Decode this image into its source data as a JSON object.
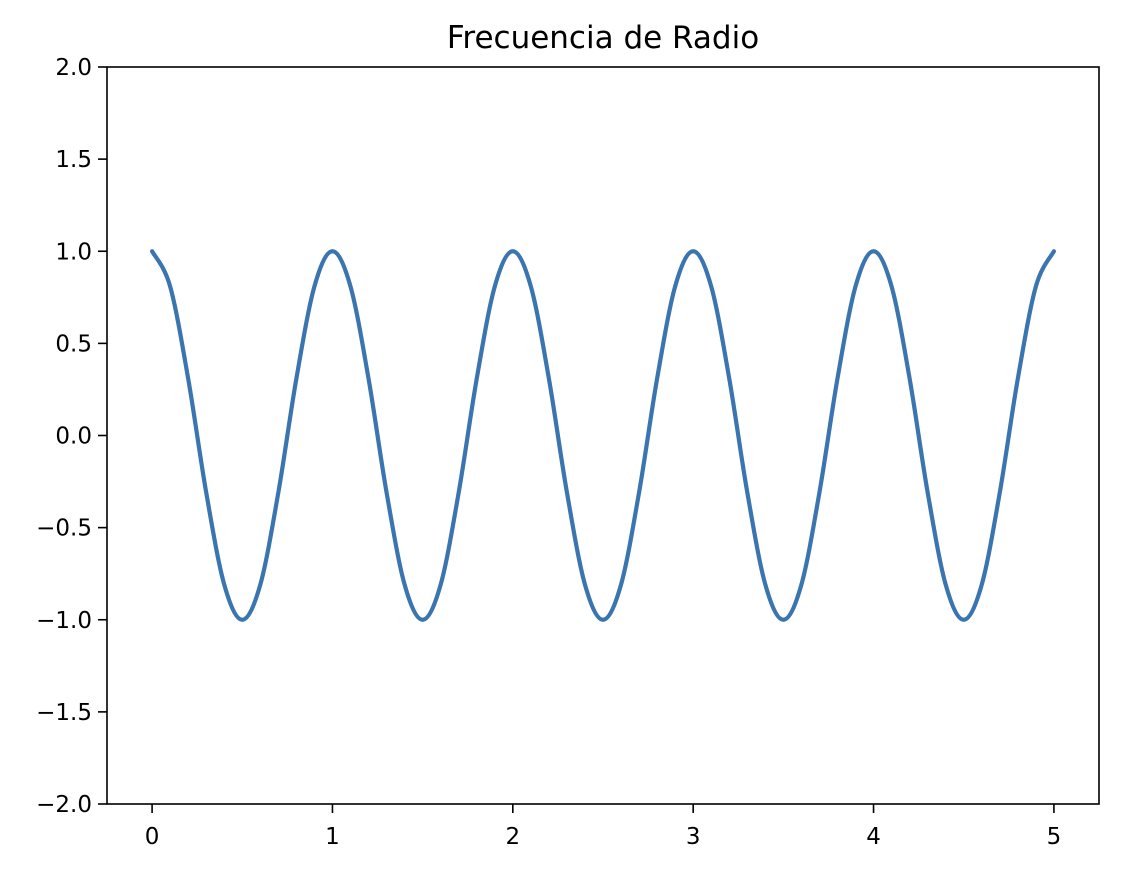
{
  "chart_data": {
    "type": "line",
    "title": "Frecuencia de Radio",
    "xlabel": "",
    "ylabel": "",
    "xlim": [
      -0.25,
      5.25
    ],
    "ylim": [
      -2.0,
      2.0
    ],
    "x_ticks": [
      0,
      1,
      2,
      3,
      4,
      5
    ],
    "x_tick_labels": [
      "0",
      "1",
      "2",
      "3",
      "4",
      "5"
    ],
    "y_ticks": [
      2.0,
      1.5,
      1.0,
      0.5,
      0.0,
      -0.5,
      -1.0,
      -1.5,
      -2.0
    ],
    "y_tick_labels": [
      "2.0",
      "1.5",
      "1.0",
      "0.5",
      "0.0",
      "−0.5",
      "−1.0",
      "−1.5",
      "−2.0"
    ],
    "grid": false,
    "series": [
      {
        "color": "#3a75b0",
        "x": [
          0,
          0.1,
          0.2,
          0.3,
          0.4,
          0.5,
          0.6,
          0.7,
          0.8,
          0.9,
          1.0,
          1.1,
          1.2,
          1.3,
          1.4,
          1.5,
          1.6,
          1.7,
          1.8,
          1.9,
          2.0,
          2.1,
          2.2,
          2.3,
          2.4,
          2.5,
          2.6,
          2.7,
          2.8,
          2.9,
          3.0,
          3.1,
          3.2,
          3.3,
          3.4,
          3.5,
          3.6,
          3.7,
          3.8,
          3.9,
          4.0,
          4.1,
          4.2,
          4.3,
          4.4,
          4.5,
          4.6,
          4.7,
          4.8,
          4.9,
          5.0
        ],
        "y": [
          1.0,
          0.809,
          0.309,
          -0.309,
          -0.809,
          -1.0,
          -0.809,
          -0.309,
          0.309,
          0.809,
          1.0,
          0.809,
          0.309,
          -0.309,
          -0.809,
          -1.0,
          -0.809,
          -0.309,
          0.309,
          0.809,
          1.0,
          0.809,
          0.309,
          -0.309,
          -0.809,
          -1.0,
          -0.809,
          -0.309,
          0.309,
          0.809,
          1.0,
          0.809,
          0.309,
          -0.309,
          -0.809,
          -1.0,
          -0.809,
          -0.309,
          0.309,
          0.809,
          1.0,
          0.809,
          0.309,
          -0.309,
          -0.809,
          -1.0,
          -0.809,
          -0.309,
          0.309,
          0.809,
          1.0
        ]
      }
    ]
  }
}
